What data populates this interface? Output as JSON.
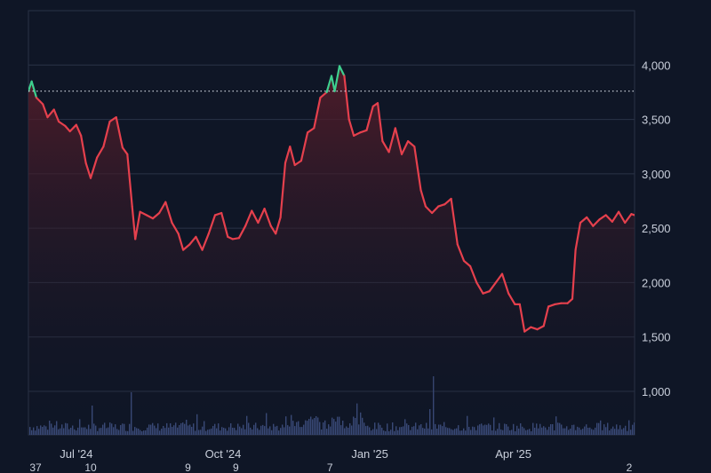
{
  "colors": {
    "background": "#0f1626",
    "grid": "#2a3346",
    "down_line": "#e5404d",
    "up_line": "#3ecf8e",
    "area_top": "#5a1d2a",
    "volume_bar": "#3a4a78",
    "baseline": "#d8dce6"
  },
  "chart_data": {
    "type": "line",
    "title": "",
    "xlabel": "",
    "ylabel": "",
    "ylim": [
      600,
      4500
    ],
    "y_ticks": [
      "4,000",
      "3,500",
      "3,000",
      "2,500",
      "2,000",
      "1,500",
      "1,000"
    ],
    "y_tick_values": [
      4000,
      3500,
      3000,
      2500,
      2000,
      1500,
      1000
    ],
    "x_tick_labels": [
      {
        "label": "Jul '24",
        "date": "2024-07-01"
      },
      {
        "label": "Oct '24",
        "date": "2024-10-01"
      },
      {
        "label": "Jan '25",
        "date": "2025-01-01"
      },
      {
        "label": "Apr '25",
        "date": "2025-04-01"
      }
    ],
    "x_sub_labels": [
      {
        "label": "37",
        "date": "2024-06-01"
      },
      {
        "label": "10",
        "date": "2024-07-10"
      },
      {
        "label": "9",
        "date": "2024-09-09"
      },
      {
        "label": "9",
        "date": "2024-10-09"
      },
      {
        "label": "7",
        "date": "2024-12-07"
      },
      {
        "label": "2",
        "date": "2025-06-16"
      }
    ],
    "xlim": [
      "2024-06-01",
      "2025-06-16"
    ],
    "baseline": 3760,
    "series": [
      {
        "values": [
          [
            "2024-06-01",
            3760
          ],
          [
            "2024-06-03",
            3850
          ],
          [
            "2024-06-06",
            3700
          ],
          [
            "2024-06-10",
            3640
          ],
          [
            "2024-06-13",
            3520
          ],
          [
            "2024-06-17",
            3590
          ],
          [
            "2024-06-20",
            3480
          ],
          [
            "2024-06-24",
            3440
          ],
          [
            "2024-06-27",
            3390
          ],
          [
            "2024-07-01",
            3450
          ],
          [
            "2024-07-04",
            3350
          ],
          [
            "2024-07-07",
            3100
          ],
          [
            "2024-07-10",
            2960
          ],
          [
            "2024-07-14",
            3150
          ],
          [
            "2024-07-18",
            3250
          ],
          [
            "2024-07-22",
            3480
          ],
          [
            "2024-07-26",
            3520
          ],
          [
            "2024-07-30",
            3240
          ],
          [
            "2024-08-02",
            3180
          ],
          [
            "2024-08-05",
            2700
          ],
          [
            "2024-08-07",
            2400
          ],
          [
            "2024-08-10",
            2650
          ],
          [
            "2024-08-14",
            2620
          ],
          [
            "2024-08-18",
            2590
          ],
          [
            "2024-08-22",
            2640
          ],
          [
            "2024-08-26",
            2740
          ],
          [
            "2024-08-30",
            2550
          ],
          [
            "2024-09-03",
            2450
          ],
          [
            "2024-09-06",
            2300
          ],
          [
            "2024-09-10",
            2350
          ],
          [
            "2024-09-14",
            2420
          ],
          [
            "2024-09-18",
            2300
          ],
          [
            "2024-09-22",
            2450
          ],
          [
            "2024-09-26",
            2620
          ],
          [
            "2024-09-30",
            2640
          ],
          [
            "2024-10-04",
            2420
          ],
          [
            "2024-10-07",
            2400
          ],
          [
            "2024-10-11",
            2410
          ],
          [
            "2024-10-15",
            2520
          ],
          [
            "2024-10-19",
            2660
          ],
          [
            "2024-10-23",
            2550
          ],
          [
            "2024-10-27",
            2680
          ],
          [
            "2024-10-31",
            2520
          ],
          [
            "2024-11-03",
            2450
          ],
          [
            "2024-11-06",
            2600
          ],
          [
            "2024-11-09",
            3100
          ],
          [
            "2024-11-12",
            3250
          ],
          [
            "2024-11-15",
            3080
          ],
          [
            "2024-11-19",
            3120
          ],
          [
            "2024-11-23",
            3380
          ],
          [
            "2024-11-27",
            3420
          ],
          [
            "2024-12-01",
            3700
          ],
          [
            "2024-12-05",
            3750
          ],
          [
            "2024-12-08",
            3900
          ],
          [
            "2024-12-10",
            3760
          ],
          [
            "2024-12-13",
            3990
          ],
          [
            "2024-12-16",
            3900
          ],
          [
            "2024-12-19",
            3500
          ],
          [
            "2024-12-22",
            3350
          ],
          [
            "2024-12-26",
            3380
          ],
          [
            "2024-12-30",
            3400
          ],
          [
            "2025-01-03",
            3620
          ],
          [
            "2025-01-06",
            3650
          ],
          [
            "2025-01-09",
            3300
          ],
          [
            "2025-01-13",
            3200
          ],
          [
            "2025-01-17",
            3420
          ],
          [
            "2025-01-21",
            3180
          ],
          [
            "2025-01-25",
            3300
          ],
          [
            "2025-01-29",
            3250
          ],
          [
            "2025-02-02",
            2850
          ],
          [
            "2025-02-05",
            2700
          ],
          [
            "2025-02-09",
            2640
          ],
          [
            "2025-02-13",
            2700
          ],
          [
            "2025-02-17",
            2720
          ],
          [
            "2025-02-21",
            2770
          ],
          [
            "2025-02-25",
            2350
          ],
          [
            "2025-03-01",
            2200
          ],
          [
            "2025-03-05",
            2150
          ],
          [
            "2025-03-09",
            2000
          ],
          [
            "2025-03-13",
            1900
          ],
          [
            "2025-03-17",
            1920
          ],
          [
            "2025-03-21",
            2000
          ],
          [
            "2025-03-25",
            2080
          ],
          [
            "2025-03-29",
            1900
          ],
          [
            "2025-04-02",
            1800
          ],
          [
            "2025-04-05",
            1800
          ],
          [
            "2025-04-08",
            1550
          ],
          [
            "2025-04-12",
            1590
          ],
          [
            "2025-04-16",
            1570
          ],
          [
            "2025-04-20",
            1600
          ],
          [
            "2025-04-23",
            1780
          ],
          [
            "2025-04-27",
            1800
          ],
          [
            "2025-05-01",
            1810
          ],
          [
            "2025-05-05",
            1810
          ],
          [
            "2025-05-08",
            1850
          ],
          [
            "2025-05-10",
            2300
          ],
          [
            "2025-05-13",
            2550
          ],
          [
            "2025-05-17",
            2600
          ],
          [
            "2025-05-21",
            2520
          ],
          [
            "2025-05-25",
            2580
          ],
          [
            "2025-05-29",
            2620
          ],
          [
            "2025-06-02",
            2560
          ],
          [
            "2025-06-06",
            2650
          ],
          [
            "2025-06-10",
            2550
          ],
          [
            "2025-06-14",
            2630
          ],
          [
            "2025-06-16",
            2620
          ]
        ]
      }
    ],
    "legend": "none",
    "grid": true
  }
}
